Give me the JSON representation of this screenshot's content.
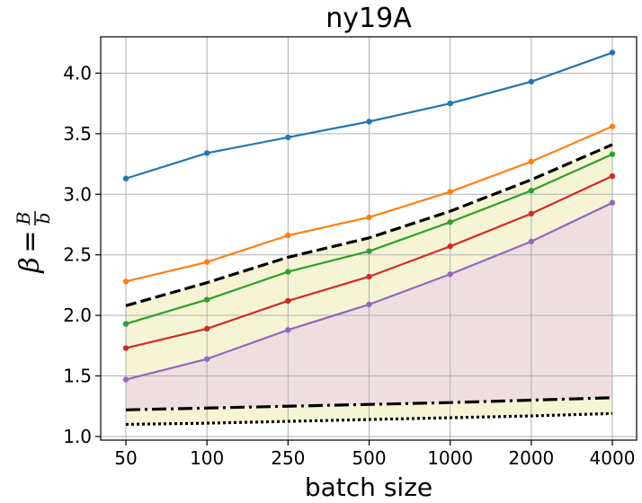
{
  "chart_data": {
    "type": "line",
    "title": "ny19A",
    "xlabel": "batch size",
    "ylabel": {
      "lhs": "β",
      "eq": "=",
      "numerator": "B",
      "denominator": "b"
    },
    "categories": [
      "50",
      "100",
      "250",
      "500",
      "1000",
      "2000",
      "4000"
    ],
    "ylim": [
      0.97,
      4.3
    ],
    "yticks": [
      1.0,
      1.5,
      2.0,
      2.5,
      3.0,
      3.5,
      4.0
    ],
    "ytick_labels": [
      "1.0",
      "1.5",
      "2.0",
      "2.5",
      "3.0",
      "3.5",
      "4.0"
    ],
    "grid": true,
    "series": [
      {
        "name": "blue",
        "color": "#1f77b4",
        "style": "solid-marker",
        "values": [
          3.13,
          3.34,
          3.47,
          3.6,
          3.75,
          3.93,
          4.17
        ]
      },
      {
        "name": "orange",
        "color": "#ff7f0e",
        "style": "solid-marker",
        "values": [
          2.28,
          2.44,
          2.66,
          2.81,
          3.02,
          3.27,
          3.56
        ]
      },
      {
        "name": "black-dashed",
        "color": "#000000",
        "style": "dashed",
        "values": [
          2.08,
          2.27,
          2.48,
          2.64,
          2.86,
          3.12,
          3.41
        ]
      },
      {
        "name": "green",
        "color": "#2ca02c",
        "style": "solid-marker",
        "values": [
          1.93,
          2.13,
          2.36,
          2.53,
          2.77,
          3.03,
          3.33
        ]
      },
      {
        "name": "red",
        "color": "#d62728",
        "style": "solid-marker",
        "values": [
          1.73,
          1.89,
          2.12,
          2.32,
          2.57,
          2.84,
          3.15
        ]
      },
      {
        "name": "purple",
        "color": "#9467bd",
        "style": "solid-marker",
        "values": [
          1.47,
          1.64,
          1.88,
          2.09,
          2.34,
          2.61,
          2.93
        ]
      },
      {
        "name": "black-dashdot",
        "color": "#000000",
        "style": "dashdot",
        "values": [
          1.22,
          1.235,
          1.25,
          1.265,
          1.28,
          1.3,
          1.32
        ]
      },
      {
        "name": "black-dotted",
        "color": "#000000",
        "style": "dotted",
        "values": [
          1.1,
          1.11,
          1.125,
          1.14,
          1.155,
          1.17,
          1.19
        ]
      }
    ],
    "fills": [
      {
        "between": [
          "black-dashed",
          "black-dotted"
        ],
        "color": "#f5f5d5"
      },
      {
        "between": [
          "purple",
          "black-dashdot"
        ],
        "color": "#f0dde0"
      }
    ]
  }
}
